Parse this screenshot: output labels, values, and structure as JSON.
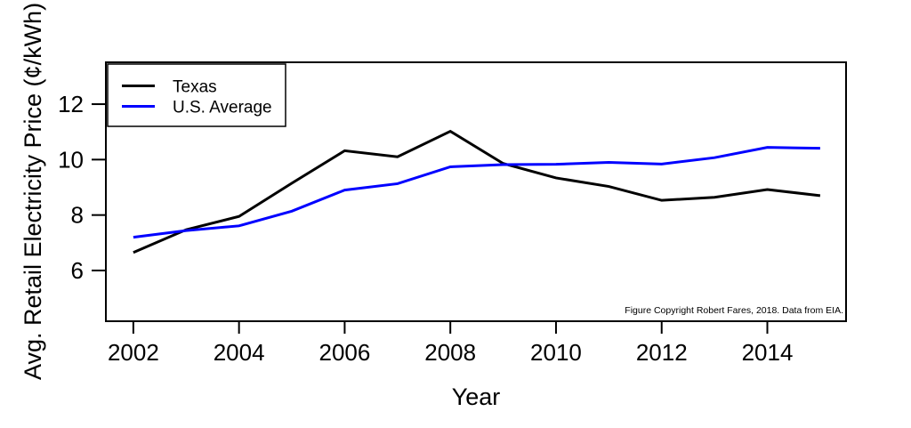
{
  "chart_data": {
    "type": "line",
    "title": "",
    "xlabel": "Year",
    "ylabel": "Avg. Retail Electricity Price (¢/kWh)",
    "x": [
      2002,
      2003,
      2004,
      2005,
      2006,
      2007,
      2008,
      2009,
      2010,
      2011,
      2012,
      2013,
      2014,
      2015
    ],
    "series": [
      {
        "name": "Texas",
        "color": "#000000",
        "values": [
          6.65,
          7.47,
          7.95,
          9.15,
          10.32,
          10.1,
          11.02,
          9.86,
          9.34,
          9.03,
          8.53,
          8.64,
          8.92,
          8.7
        ]
      },
      {
        "name": "U.S. Average",
        "color": "#0000FF",
        "values": [
          7.2,
          7.44,
          7.61,
          8.14,
          8.9,
          9.13,
          9.74,
          9.82,
          9.83,
          9.9,
          9.84,
          10.07,
          10.44,
          10.41
        ]
      }
    ],
    "xticks": [
      2002,
      2004,
      2006,
      2008,
      2010,
      2012,
      2014
    ],
    "yticks": [
      6,
      8,
      10,
      12
    ],
    "xlim": [
      2001.48,
      2015.49
    ],
    "ylim": [
      4.17,
      13.51
    ],
    "grid": false,
    "legend_position": "top-left",
    "annotation": "Figure Copyright Robert Fares, 2018. Data from EIA."
  }
}
